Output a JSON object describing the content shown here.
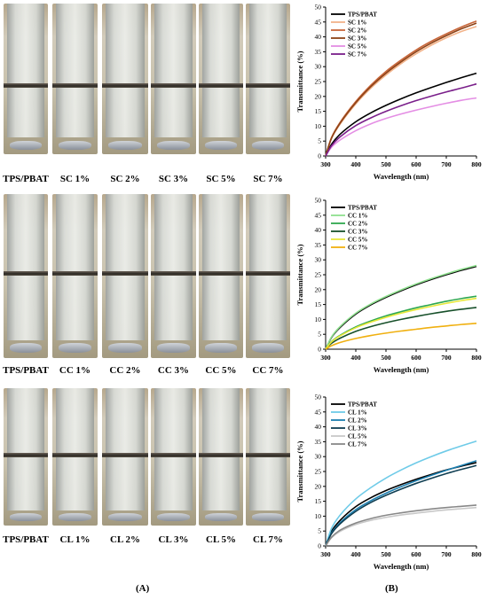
{
  "panels": {
    "A": "(A)",
    "B": "(B)"
  },
  "photo_rows": [
    {
      "labels": [
        "TPS/PBAT",
        "SC 1%",
        "SC 2%",
        "SC 3%",
        "SC 5%",
        "SC 7%"
      ]
    },
    {
      "labels": [
        "TPS/PBAT",
        "CC 1%",
        "CC 2%",
        "CC 3%",
        "CC 5%",
        "CC 7%"
      ]
    },
    {
      "labels": [
        "TPS/PBAT",
        "CL 1%",
        "CL 2%",
        "CL 3%",
        "CL 5%",
        "CL 7%"
      ]
    }
  ],
  "chart_data": [
    {
      "type": "line",
      "xlabel": "Wavelength (nm)",
      "ylabel": "Transmittance (%)",
      "xlim": [
        300,
        800
      ],
      "ylim": [
        0,
        50
      ],
      "xticks": [
        300,
        400,
        500,
        600,
        700,
        800
      ],
      "yticks": [
        0,
        5,
        10,
        15,
        20,
        25,
        30,
        35,
        40,
        45,
        50
      ],
      "grid": false,
      "legend": "top-left",
      "x": [
        300,
        320,
        350,
        400,
        450,
        500,
        550,
        600,
        650,
        700,
        750,
        800
      ],
      "series": [
        {
          "name": "TPS/PBAT",
          "color": "#000000",
          "values": [
            0,
            4.0,
            7.5,
            11.5,
            14.5,
            17.0,
            19.2,
            21.2,
            23.0,
            24.7,
            26.3,
            27.8
          ]
        },
        {
          "name": "SC 1%",
          "color": "#f2b38a",
          "values": [
            0,
            6.0,
            11.0,
            17.5,
            22.8,
            27.2,
            31.0,
            34.3,
            37.2,
            39.7,
            41.8,
            43.5
          ]
        },
        {
          "name": "SC 2%",
          "color": "#c8663a",
          "values": [
            0,
            6.3,
            11.6,
            18.3,
            23.8,
            28.4,
            32.2,
            35.6,
            38.5,
            41.0,
            43.3,
            45.3
          ]
        },
        {
          "name": "SC 3%",
          "color": "#8e4317",
          "values": [
            0,
            6.1,
            11.3,
            17.9,
            23.3,
            27.8,
            31.6,
            35.0,
            37.9,
            40.4,
            42.7,
            44.6
          ]
        },
        {
          "name": "SC 5%",
          "color": "#e48ee4",
          "values": [
            0,
            3.0,
            5.5,
            8.5,
            10.8,
            12.6,
            14.1,
            15.4,
            16.6,
            17.7,
            18.7,
            19.5
          ]
        },
        {
          "name": "SC 7%",
          "color": "#7a1f8a",
          "values": [
            0,
            3.5,
            6.6,
            10.2,
            12.8,
            15.0,
            16.9,
            18.6,
            20.1,
            21.5,
            22.8,
            24.2
          ]
        }
      ]
    },
    {
      "type": "line",
      "xlabel": "Wavelength (nm)",
      "ylabel": "Transmittance (%)",
      "xlim": [
        300,
        800
      ],
      "ylim": [
        0,
        50
      ],
      "xticks": [
        300,
        400,
        500,
        600,
        700,
        800
      ],
      "yticks": [
        0,
        5,
        10,
        15,
        20,
        25,
        30,
        35,
        40,
        45,
        50
      ],
      "grid": false,
      "legend": "top-left",
      "x": [
        300,
        320,
        350,
        400,
        450,
        500,
        550,
        600,
        650,
        700,
        750,
        800
      ],
      "series": [
        {
          "name": "TPS/PBAT",
          "color": "#000000",
          "values": [
            0,
            4.0,
            7.5,
            11.8,
            14.9,
            17.4,
            19.6,
            21.6,
            23.4,
            25.0,
            26.5,
            27.8
          ]
        },
        {
          "name": "CC 1%",
          "color": "#8fe08f",
          "values": [
            0,
            4.2,
            7.8,
            12.1,
            15.2,
            17.7,
            19.9,
            21.9,
            23.7,
            25.3,
            26.8,
            28.1
          ]
        },
        {
          "name": "CC 2%",
          "color": "#2fa84f",
          "values": [
            0,
            2.6,
            4.8,
            7.5,
            9.5,
            11.2,
            12.6,
            13.9,
            15.0,
            16.1,
            17.0,
            17.8
          ]
        },
        {
          "name": "CC 3%",
          "color": "#17502a",
          "values": [
            0,
            2.0,
            3.8,
            6.0,
            7.6,
            8.9,
            10.0,
            11.0,
            11.9,
            12.7,
            13.4,
            14.0
          ]
        },
        {
          "name": "CC 5%",
          "color": "#e8e83a",
          "values": [
            0,
            2.5,
            4.6,
            7.2,
            9.1,
            10.7,
            12.1,
            13.3,
            14.4,
            15.4,
            16.3,
            17.1
          ]
        },
        {
          "name": "CC 7%",
          "color": "#f0b010",
          "values": [
            0,
            1.2,
            2.3,
            3.6,
            4.6,
            5.4,
            6.1,
            6.7,
            7.3,
            7.8,
            8.3,
            8.7
          ]
        }
      ]
    },
    {
      "type": "line",
      "xlabel": "Wavelength (nm)",
      "ylabel": "Transmittance (%)",
      "xlim": [
        300,
        800
      ],
      "ylim": [
        0,
        50
      ],
      "xticks": [
        300,
        400,
        500,
        600,
        700,
        800
      ],
      "yticks": [
        0,
        5,
        10,
        15,
        20,
        25,
        30,
        35,
        40,
        45,
        50
      ],
      "grid": false,
      "legend": "top-left",
      "x": [
        300,
        320,
        350,
        400,
        450,
        500,
        550,
        600,
        650,
        700,
        750,
        800
      ],
      "series": [
        {
          "name": "TPS/PBAT",
          "color": "#000000",
          "values": [
            0,
            5.0,
            8.8,
            13.2,
            16.2,
            18.6,
            20.6,
            22.4,
            24.0,
            25.5,
            26.8,
            28.0
          ]
        },
        {
          "name": "CL 1%",
          "color": "#6fcbe8",
          "values": [
            0,
            6.0,
            10.6,
            15.8,
            19.6,
            22.8,
            25.5,
            27.9,
            30.0,
            31.9,
            33.6,
            35.2
          ]
        },
        {
          "name": "CL 2%",
          "color": "#1c7fb0",
          "values": [
            0,
            4.5,
            8.0,
            12.2,
            15.2,
            17.7,
            19.9,
            21.9,
            23.7,
            25.4,
            27.0,
            28.6
          ]
        },
        {
          "name": "CL 3%",
          "color": "#0f3e52",
          "values": [
            0,
            4.2,
            7.6,
            11.6,
            14.6,
            17.0,
            19.1,
            21.0,
            22.7,
            24.3,
            25.7,
            27.0
          ]
        },
        {
          "name": "CL 5%",
          "color": "#c8c8c8",
          "values": [
            0,
            2.8,
            5.0,
            7.2,
            8.6,
            9.6,
            10.4,
            11.0,
            11.6,
            12.1,
            12.5,
            12.9
          ]
        },
        {
          "name": "CL 7%",
          "color": "#888888",
          "values": [
            0,
            3.0,
            5.4,
            7.7,
            9.2,
            10.3,
            11.1,
            11.8,
            12.4,
            12.9,
            13.3,
            13.7
          ]
        }
      ]
    }
  ]
}
